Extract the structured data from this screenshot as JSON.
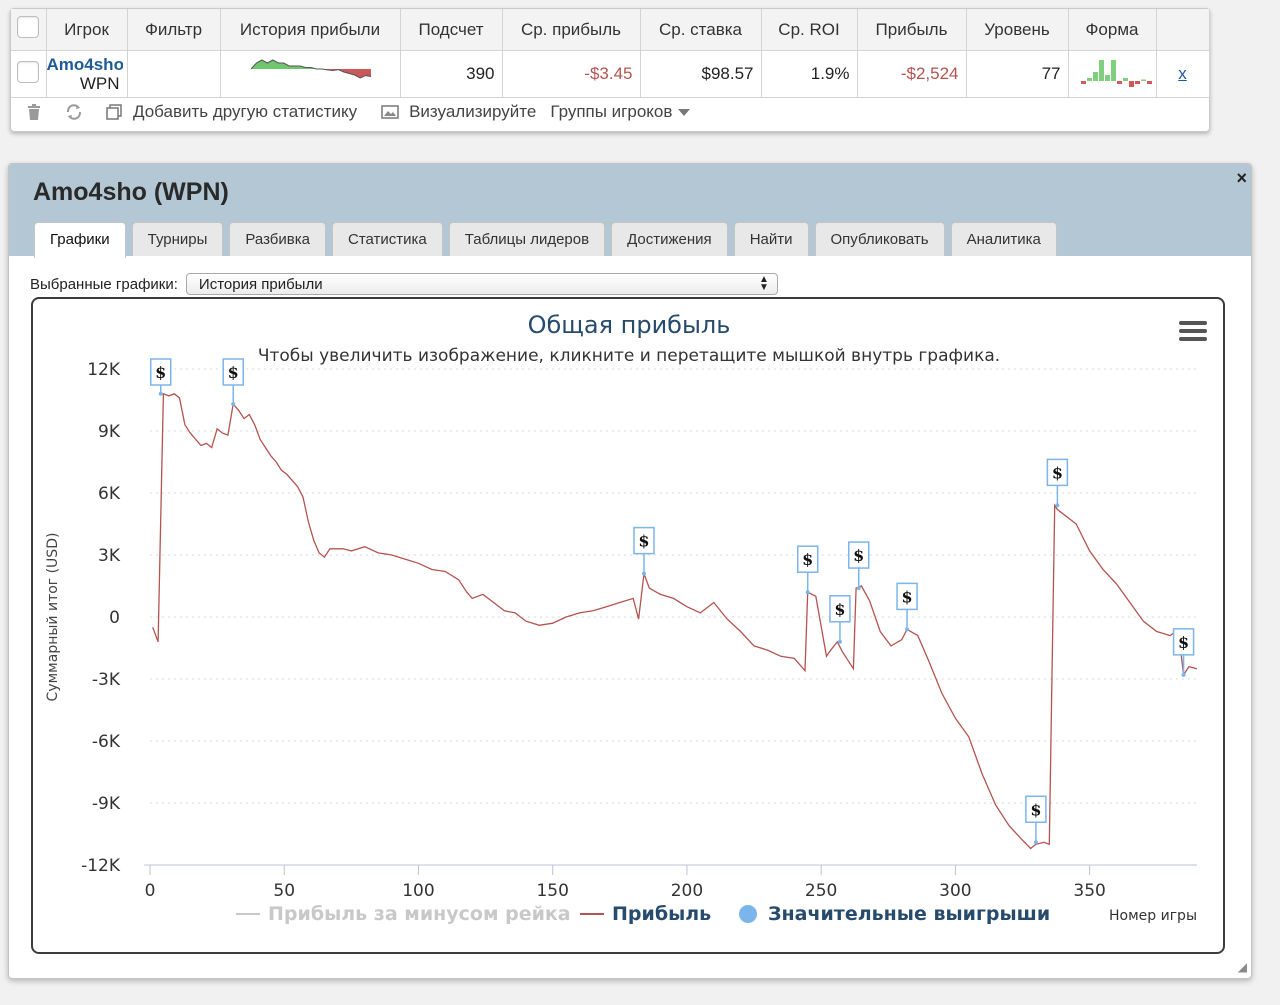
{
  "stats_table": {
    "headers": [
      "",
      "Игрок",
      "Фильтр",
      "История прибыли",
      "Подсчет",
      "Ср. прибыль",
      "Ср. ставка",
      "Ср. ROI",
      "Прибыль",
      "Уровень",
      "Форма",
      ""
    ],
    "row": {
      "player_name": "Amo4sho",
      "site": "WPN",
      "filter": "",
      "count": "390",
      "avg_profit": "-$3.45",
      "avg_stake": "$98.57",
      "avg_roi": "1.9%",
      "profit": "-$2,524",
      "level": "77",
      "remove": "x"
    },
    "sparkline_history": [
      0,
      2,
      3,
      2,
      3,
      2,
      2,
      1,
      1,
      1,
      0.5,
      0.5,
      0,
      0,
      -0.3,
      -0.5,
      -0.2,
      -1,
      -1.5,
      -2,
      -3,
      -2.2,
      -2.5
    ],
    "form_bars": [
      -1,
      1,
      3,
      7,
      2,
      7,
      -1,
      1,
      -2,
      -1,
      0.5,
      -1
    ]
  },
  "toolbar": {
    "add_stat": "Добавить другую статистику",
    "visualize": "Визуализируйте",
    "player_groups": "Группы игроков"
  },
  "dialog": {
    "title": "Amo4sho (WPN)",
    "close": "×",
    "tabs": [
      "Графики",
      "Турниры",
      "Разбивка",
      "Статистика",
      "Таблицы лидеров",
      "Достижения",
      "Найти",
      "Опубликовать",
      "Аналитика"
    ],
    "selected_label": "Выбранные графики:",
    "selected_value": "История прибыли"
  },
  "colors": {
    "profit_line": "#b4534f",
    "marker": "#7cb5ec",
    "title": "#274b6d",
    "legend_active": "#274b6d",
    "legend_hidden": "#c8c8c8"
  },
  "chart_data": {
    "type": "line",
    "title": "Общая прибыль",
    "subtitle": "Чтобы увеличить изображение, кликните и перетащите мышкой внутрь графика.",
    "xlabel": "Номер игры",
    "ylabel": "Суммарный итог (USD)",
    "xlim": [
      0,
      390
    ],
    "ylim": [
      -12000,
      12000
    ],
    "x_ticks": [
      "0",
      "50",
      "100",
      "150",
      "200",
      "250",
      "300",
      "350"
    ],
    "y_ticks": [
      "12K",
      "9K",
      "6K",
      "3K",
      "0",
      "-3K",
      "-6K",
      "-9K",
      "-12K"
    ],
    "grid": "horizontal dotted",
    "legend_placement": "bottom-center",
    "series": [
      {
        "name": "Прибыль",
        "color": "#b4534f",
        "x": [
          1,
          3,
          5,
          7,
          9,
          11,
          13,
          15,
          17,
          19,
          21,
          23,
          25,
          27,
          29,
          31,
          33,
          35,
          37,
          39,
          41,
          43,
          45,
          47,
          49,
          51,
          53,
          55,
          57,
          59,
          61,
          63,
          65,
          67,
          69,
          72,
          75,
          80,
          85,
          90,
          95,
          100,
          105,
          110,
          115,
          118,
          120,
          124,
          128,
          132,
          136,
          140,
          145,
          150,
          155,
          160,
          165,
          170,
          175,
          180,
          182,
          184,
          186,
          190,
          195,
          200,
          205,
          210,
          215,
          220,
          225,
          230,
          235,
          240,
          244,
          245,
          248,
          252,
          253,
          256,
          258,
          262,
          263,
          265,
          268,
          272,
          276,
          280,
          282,
          286,
          290,
          295,
          300,
          305,
          310,
          315,
          320,
          325,
          328,
          330,
          333,
          335,
          337,
          338,
          340,
          345,
          350,
          355,
          360,
          365,
          370,
          375,
          380,
          383,
          385,
          387,
          390
        ],
        "y": [
          -500,
          -1200,
          10800,
          10700,
          10800,
          10600,
          9300,
          8900,
          8600,
          8300,
          8400,
          8200,
          9100,
          8900,
          8800,
          10300,
          10000,
          9600,
          9800,
          9300,
          8600,
          8200,
          7800,
          7500,
          7100,
          6900,
          6600,
          6300,
          5800,
          4600,
          3700,
          3100,
          2900,
          3300,
          3300,
          3300,
          3200,
          3400,
          3100,
          3000,
          2800,
          2600,
          2300,
          2200,
          1800,
          1200,
          900,
          1100,
          700,
          300,
          200,
          -200,
          -400,
          -300,
          0,
          200,
          300,
          500,
          700,
          900,
          -100,
          2100,
          1400,
          1100,
          900,
          500,
          200,
          700,
          -100,
          -700,
          -1400,
          -1600,
          -1900,
          -2000,
          -2600,
          1200,
          1000,
          -1900,
          -1700,
          -1200,
          -1700,
          -2500,
          1400,
          1500,
          800,
          -700,
          -1400,
          -1100,
          -600,
          -900,
          -2100,
          -3700,
          -4900,
          -5800,
          -7600,
          -9100,
          -10100,
          -10800,
          -11200,
          -11000,
          -10900,
          -11000,
          5400,
          5200,
          5000,
          4500,
          3200,
          2300,
          1600,
          700,
          -200,
          -700,
          -900,
          -600,
          -2800,
          -2400,
          -2500
        ]
      }
    ],
    "significant_wins": [
      {
        "x": 4,
        "y": 10800
      },
      {
        "x": 31,
        "y": 10300
      },
      {
        "x": 184,
        "y": 2100
      },
      {
        "x": 245,
        "y": 1200
      },
      {
        "x": 257,
        "y": -1200
      },
      {
        "x": 264,
        "y": 1400
      },
      {
        "x": 282,
        "y": -600
      },
      {
        "x": 330,
        "y": -10900
      },
      {
        "x": 338,
        "y": 5400
      },
      {
        "x": 385,
        "y": -2800
      }
    ],
    "win_marker_label": "$",
    "legend": [
      "Прибыль за минусом рейка",
      "Прибыль",
      "Значительные выигрыши"
    ]
  }
}
